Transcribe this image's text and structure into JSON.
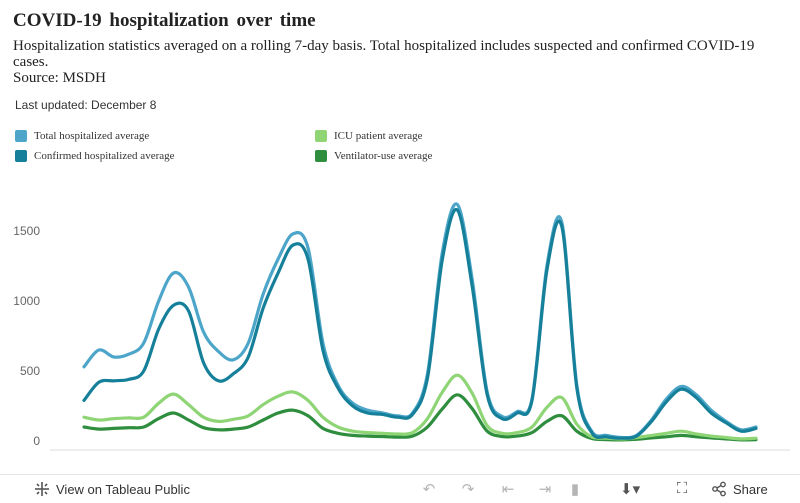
{
  "header": {
    "title": "COVID-19 hospitalization over time",
    "subtitle": "Hospitalization statistics averaged on a rolling 7-day basis. Total hospitalized includes suspected and confirmed COVID-19 cases.",
    "source": "Source: MSDH",
    "updated": "Last updated: December 8"
  },
  "legend": [
    {
      "label": "Total hospitalized average",
      "color": "#4da6c9"
    },
    {
      "label": "Confirmed hospitalized average",
      "color": "#16809a"
    },
    {
      "label": "ICU patient average",
      "color": "#8fd576"
    },
    {
      "label": "Ventilator-use average",
      "color": "#2f8e3e"
    }
  ],
  "toolbar": {
    "view_label": "View on Tableau Public",
    "share_label": "Share",
    "colors": {
      "icon": "#666666",
      "disabled": "#b5b5b5"
    }
  },
  "chart_data": {
    "type": "line",
    "xlabel": "",
    "ylabel": "",
    "ylim": [
      0,
      1750
    ],
    "yticks": [
      0,
      500,
      1000,
      1500
    ],
    "x_points": 46,
    "grid": false,
    "legend_position": "top",
    "series": [
      {
        "name": "Total hospitalized average",
        "color": "#4da6c9",
        "values": [
          530,
          650,
          600,
          620,
          700,
          1000,
          1200,
          1100,
          780,
          640,
          580,
          700,
          1050,
          1300,
          1480,
          1380,
          700,
          400,
          270,
          220,
          200,
          180,
          200,
          480,
          1350,
          1690,
          1150,
          350,
          175,
          210,
          300,
          1250,
          1560,
          400,
          70,
          40,
          25,
          40,
          150,
          300,
          390,
          330,
          220,
          140,
          80,
          100
        ]
      },
      {
        "name": "Confirmed hospitalized average",
        "color": "#16809a",
        "values": [
          290,
          420,
          430,
          440,
          500,
          800,
          970,
          930,
          560,
          430,
          480,
          600,
          950,
          1200,
          1400,
          1300,
          650,
          380,
          250,
          200,
          190,
          170,
          190,
          450,
          1300,
          1650,
          1100,
          330,
          160,
          200,
          290,
          1220,
          1530,
          380,
          60,
          30,
          20,
          35,
          140,
          280,
          370,
          310,
          200,
          130,
          70,
          90
        ]
      },
      {
        "name": "ICU patient average",
        "color": "#8fd576",
        "values": [
          170,
          150,
          160,
          165,
          170,
          270,
          335,
          260,
          170,
          140,
          155,
          180,
          260,
          320,
          350,
          290,
          170,
          100,
          70,
          60,
          55,
          50,
          60,
          160,
          350,
          470,
          340,
          110,
          55,
          60,
          100,
          240,
          310,
          120,
          30,
          20,
          15,
          25,
          40,
          55,
          70,
          50,
          35,
          25,
          15,
          20
        ]
      },
      {
        "name": "Ventilator-use average",
        "color": "#2f8e3e",
        "values": [
          100,
          85,
          90,
          95,
          100,
          160,
          200,
          150,
          95,
          80,
          85,
          100,
          150,
          200,
          220,
          180,
          90,
          55,
          40,
          35,
          32,
          28,
          35,
          100,
          230,
          330,
          230,
          70,
          32,
          35,
          60,
          140,
          180,
          70,
          18,
          10,
          8,
          12,
          22,
          30,
          40,
          30,
          22,
          15,
          8,
          10
        ]
      }
    ]
  }
}
